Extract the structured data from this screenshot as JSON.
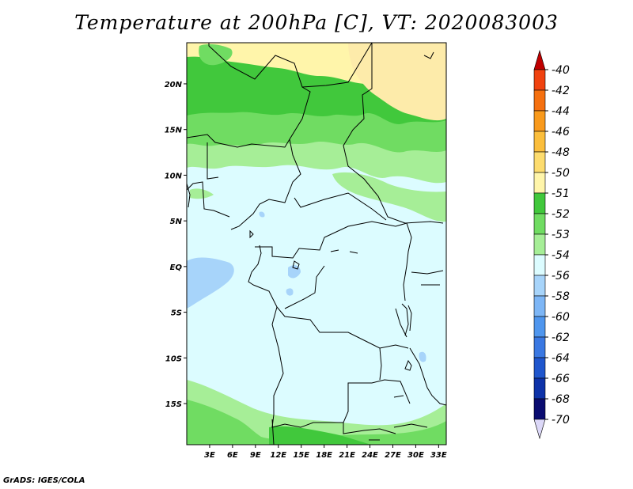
{
  "title": "Temperature at 200hPa [C], VT: 2020083003",
  "footer": "GrADS: IGES/COLA",
  "map": {
    "lon_range": [
      0,
      34
    ],
    "lat_range": [
      -19.5,
      24.5
    ],
    "lon_ticks": [
      {
        "value": 3,
        "label": "3E"
      },
      {
        "value": 6,
        "label": "6E"
      },
      {
        "value": 9,
        "label": "9E"
      },
      {
        "value": 12,
        "label": "12E"
      },
      {
        "value": 15,
        "label": "15E"
      },
      {
        "value": 18,
        "label": "18E"
      },
      {
        "value": 21,
        "label": "21E"
      },
      {
        "value": 24,
        "label": "24E"
      },
      {
        "value": 27,
        "label": "27E"
      },
      {
        "value": 30,
        "label": "30E"
      },
      {
        "value": 33,
        "label": "33E"
      }
    ],
    "lat_ticks": [
      {
        "value": 20,
        "label": "20N"
      },
      {
        "value": 15,
        "label": "15N"
      },
      {
        "value": 10,
        "label": "10N"
      },
      {
        "value": 5,
        "label": "5N"
      },
      {
        "value": 0,
        "label": "EQ"
      },
      {
        "value": -5,
        "label": "5S"
      },
      {
        "value": -10,
        "label": "10S"
      },
      {
        "value": -15,
        "label": "15S"
      }
    ]
  },
  "colorbar": {
    "labels": [
      "-40",
      "-42",
      "-44",
      "-46",
      "-48",
      "-50",
      "-51",
      "-52",
      "-53",
      "-54",
      "-56",
      "-58",
      "-60",
      "-62",
      "-64",
      "-66",
      "-68",
      "-70"
    ],
    "colors": [
      "#e11b00",
      "#f0420f",
      "#f5700f",
      "#f99a1c",
      "#fbbe3c",
      "#fddc6e",
      "#fff5aa",
      "#41c83c",
      "#70dc62",
      "#a6ee97",
      "#dcfcff",
      "#a7d4fa",
      "#7db6f6",
      "#4f96ee",
      "#3a78e2",
      "#1f56cd",
      "#0d32a8",
      "#0a0c70",
      "#dcd8f8"
    ],
    "top_color": "#c00000",
    "bottom_color": "#dcd8f8"
  },
  "colors": {
    "warm_tan": "#fdebaa",
    "pale_yellow": "#fff5aa",
    "green_dark": "#41c83c",
    "green_mid": "#70dc62",
    "green_light": "#a6ee97",
    "cyan_pale": "#dcfcff",
    "blue_light": "#a7d4fa"
  }
}
